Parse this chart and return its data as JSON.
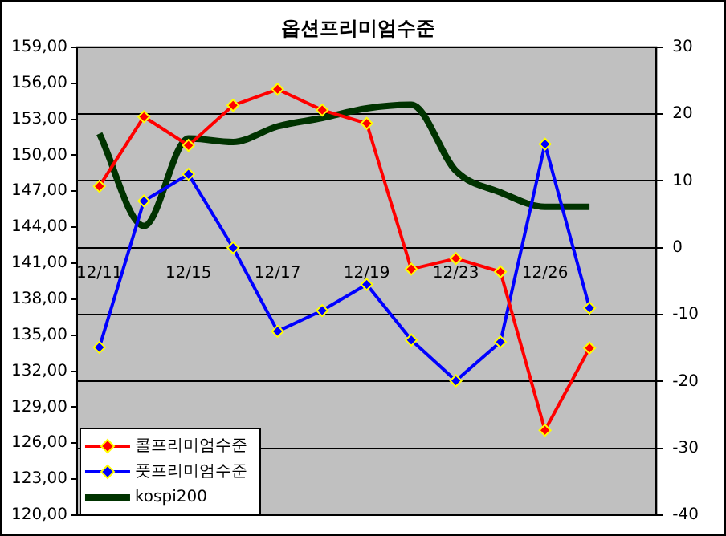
{
  "chart_data": {
    "type": "line",
    "title": "옵션프리미엄수준",
    "categories": [
      "12/11",
      null,
      "12/15",
      null,
      "12/17",
      null,
      "12/19",
      null,
      "12/23",
      null,
      "12/26",
      null,
      null
    ],
    "series": [
      {
        "name": "콜프리미엄수준",
        "color": "#ff0000",
        "marker": "diamond",
        "values": [
          9.2,
          19.6,
          15.3,
          21.3,
          23.7,
          20.6,
          18.6,
          -3.2,
          -1.6,
          -3.6,
          -27.3,
          -15,
          null
        ]
      },
      {
        "name": "풋프리미엄수준",
        "color": "#0000ff",
        "marker": "diamond",
        "values": [
          -14.9,
          7,
          11,
          0,
          -12.5,
          -9.4,
          -5.5,
          -13.8,
          -19.9,
          -14.1,
          15.5,
          -9,
          null
        ]
      },
      {
        "name": "kospi200",
        "color": "#003300",
        "marker": "none",
        "axis": "y2",
        "values": [
          151.8,
          144.1,
          151.4,
          151.1,
          152.4,
          153.1,
          153.9,
          154.2,
          148.7,
          146.9,
          145.7,
          145.7,
          null
        ]
      }
    ],
    "ylim": [
      -40,
      30
    ],
    "yticks": [
      -40,
      -30,
      -20,
      -10,
      0,
      10,
      20,
      30
    ],
    "y2lim": [
      120,
      159
    ],
    "y2ticks": [
      {
        "value": 120,
        "label": "120,00"
      },
      {
        "value": 123,
        "label": "123,00"
      },
      {
        "value": 126,
        "label": "126,00"
      },
      {
        "value": 129,
        "label": "129,00"
      },
      {
        "value": 132,
        "label": "132,00"
      },
      {
        "value": 135,
        "label": "135,00"
      },
      {
        "value": 138,
        "label": "138,00"
      },
      {
        "value": 141,
        "label": "141,00"
      },
      {
        "value": 144,
        "label": "144,00"
      },
      {
        "value": 147,
        "label": "147,00"
      },
      {
        "value": 150,
        "label": "150,00"
      },
      {
        "value": 153,
        "label": "153,00"
      },
      {
        "value": 156,
        "label": "156,00"
      },
      {
        "value": 159,
        "label": "159,00"
      }
    ],
    "grid": "y",
    "legend": "bottom left"
  }
}
